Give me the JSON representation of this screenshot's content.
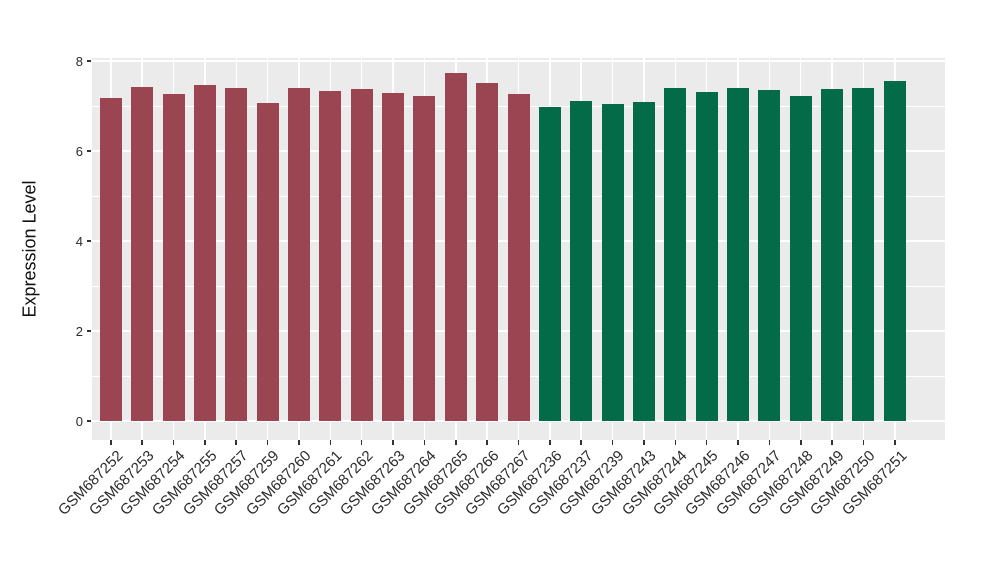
{
  "figure": {
    "background": "#ffffff",
    "panel_bg": "#ebebeb",
    "grid_color": "#ffffff",
    "tick_color": "#333333",
    "text_color": "#2b2b2b"
  },
  "chart_data": {
    "type": "bar",
    "title": "",
    "xlabel": "",
    "ylabel": "Expression Level",
    "ylim": [
      0,
      8
    ],
    "yticks": [
      0,
      2,
      4,
      6,
      8
    ],
    "yticks_minor": [
      1,
      3,
      5,
      7
    ],
    "grid": true,
    "legend": false,
    "categories": [
      "GSM687252",
      "GSM687253",
      "GSM687254",
      "GSM687255",
      "GSM687257",
      "GSM687259",
      "GSM687260",
      "GSM687261",
      "GSM687262",
      "GSM687263",
      "GSM687264",
      "GSM687265",
      "GSM687266",
      "GSM687267",
      "GSM687236",
      "GSM687237",
      "GSM687239",
      "GSM687243",
      "GSM687244",
      "GSM687245",
      "GSM687246",
      "GSM687247",
      "GSM687248",
      "GSM687249",
      "GSM687250",
      "GSM687251"
    ],
    "values": [
      7.17,
      7.43,
      7.27,
      7.47,
      7.41,
      7.07,
      7.4,
      7.34,
      7.38,
      7.28,
      7.23,
      7.73,
      7.51,
      7.27,
      6.98,
      7.12,
      7.04,
      7.1,
      7.41,
      7.32,
      7.39,
      7.35,
      7.23,
      7.38,
      7.39,
      7.55
    ],
    "group_index": [
      0,
      0,
      0,
      0,
      0,
      0,
      0,
      0,
      0,
      0,
      0,
      0,
      0,
      0,
      1,
      1,
      1,
      1,
      1,
      1,
      1,
      1,
      1,
      1,
      1,
      1
    ],
    "group_colors": [
      "#9b4553",
      "#046b49"
    ]
  }
}
